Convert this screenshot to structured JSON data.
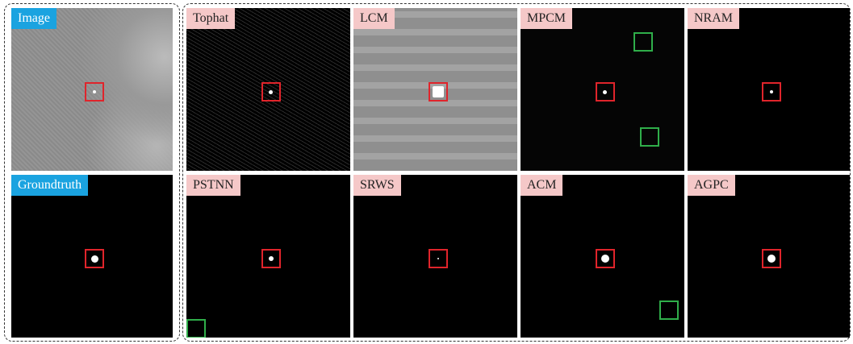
{
  "panels": [
    {
      "label": "Image"
    },
    {
      "label": "Groundtruth"
    },
    {
      "label": "Tophat"
    },
    {
      "label": "LCM"
    },
    {
      "label": "MPCM"
    },
    {
      "label": "NRAM"
    },
    {
      "label": "PSTNN"
    },
    {
      "label": "SRWS"
    },
    {
      "label": "ACM"
    },
    {
      "label": "AGPC"
    }
  ]
}
